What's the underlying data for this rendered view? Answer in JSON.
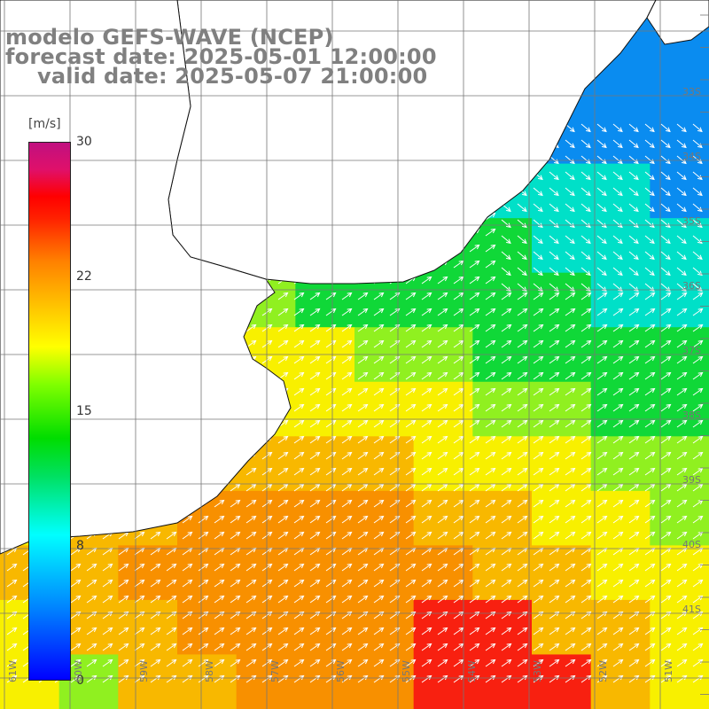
{
  "title": {
    "line1": "modelo GEFS-WAVE (NCEP)",
    "line2": "forecast date: 2025-05-01 12:00:00",
    "line3": "valid date: 2025-05-07 21:00:00"
  },
  "colorbar": {
    "unit": "[m/s]",
    "ticks": [
      "30",
      "22",
      "15",
      "8",
      "0"
    ],
    "colors": [
      "#0000ff",
      "#00ffff",
      "#00dd00",
      "#ffff00",
      "#ff8000",
      "#ff0000",
      "#c01080"
    ]
  },
  "lat_labels": [
    "33S",
    "34S",
    "35S",
    "36S",
    "37S",
    "38S",
    "39S",
    "40S",
    "41S"
  ],
  "lon_labels": [
    "61W",
    "60W",
    "59W",
    "58W",
    "57W",
    "56W",
    "55W",
    "54W",
    "53W",
    "52W",
    "51W"
  ],
  "wind_field": {
    "palette": {
      "blue": "#0a8cf0",
      "cyan": "#00e0c8",
      "green": "#10d838",
      "lime": "#90f020",
      "yellow": "#f8f000",
      "amber": "#f8b800",
      "orange": "#f89000",
      "red": "#f82010",
      "land": "#ffffff"
    },
    "rows": [
      "BBBBBBBBBBBB",
      "CCBBBBBBBBBB",
      "CCCCCBBBBBBB",
      "GGGGGGCCCCCB",
      "GGGGGGGGGCCC",
      "GGLLLGGGGGCC",
      "LLYYYYLLGGGG",
      "YYYYYYYYLLGG",
      "YYYAAAAYYYLL",
      "YAAOOOOAAYYL",
      "AAOOOOOOAAYY",
      "YAAOOOORRAAY",
      "YLAAOOORRRAY"
    ]
  }
}
